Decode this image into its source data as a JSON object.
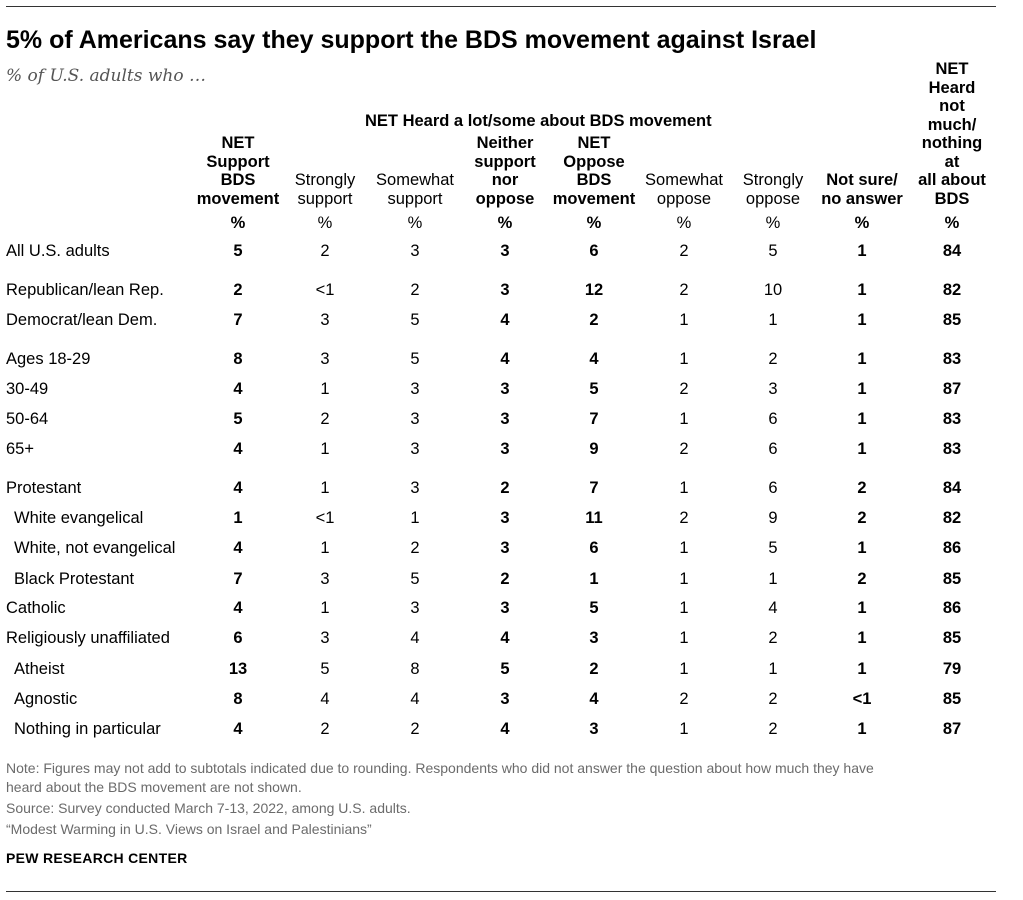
{
  "chart_data": {
    "type": "table",
    "title": "5% of Americans say they support the BDS movement against Israel",
    "subtitle": "% of U.S. adults who …",
    "group_header": "NET Heard a lot/some about BDS movement",
    "columns": [
      {
        "label": "NET\nSupport\nBDS\nmovement",
        "unit": "%"
      },
      {
        "label": "Strongly\nsupport",
        "unit": "%"
      },
      {
        "label": "Somewhat\nsupport",
        "unit": "%"
      },
      {
        "label": "Neither\nsupport\nnor\noppose",
        "unit": "%"
      },
      {
        "label": "NET\nOppose\nBDS\nmovement",
        "unit": "%"
      },
      {
        "label": "Somewhat\noppose",
        "unit": "%"
      },
      {
        "label": "Strongly\noppose",
        "unit": "%"
      },
      {
        "label": "Not sure/\nno answer",
        "unit": "%"
      },
      {
        "label": "NET Heard\nnot much/\nnothing at\nall about\nBDS",
        "unit": "%"
      }
    ],
    "rows": [
      {
        "label": "All U.S. adults",
        "values": [
          "5",
          "2",
          "3",
          "3",
          "6",
          "2",
          "5",
          "1",
          "84"
        ]
      },
      {
        "label": "Republican/lean Rep.",
        "values": [
          "2",
          "<1",
          "2",
          "3",
          "12",
          "2",
          "10",
          "1",
          "82"
        ]
      },
      {
        "label": "Democrat/lean Dem.",
        "values": [
          "7",
          "3",
          "5",
          "4",
          "2",
          "1",
          "1",
          "1",
          "85"
        ]
      },
      {
        "label": "Ages 18-29",
        "values": [
          "8",
          "3",
          "5",
          "4",
          "4",
          "1",
          "2",
          "1",
          "83"
        ]
      },
      {
        "label": "30-49",
        "values": [
          "4",
          "1",
          "3",
          "3",
          "5",
          "2",
          "3",
          "1",
          "87"
        ]
      },
      {
        "label": "50-64",
        "values": [
          "5",
          "2",
          "3",
          "3",
          "7",
          "1",
          "6",
          "1",
          "83"
        ]
      },
      {
        "label": "65+",
        "values": [
          "4",
          "1",
          "3",
          "3",
          "9",
          "2",
          "6",
          "1",
          "83"
        ]
      },
      {
        "label": "Protestant",
        "values": [
          "4",
          "1",
          "3",
          "2",
          "7",
          "1",
          "6",
          "2",
          "84"
        ]
      },
      {
        "label": "White evangelical",
        "values": [
          "1",
          "<1",
          "1",
          "3",
          "11",
          "2",
          "9",
          "2",
          "82"
        ]
      },
      {
        "label": "White, not evangelical",
        "values": [
          "4",
          "1",
          "2",
          "3",
          "6",
          "1",
          "5",
          "1",
          "86"
        ]
      },
      {
        "label": "Black Protestant",
        "values": [
          "7",
          "3",
          "5",
          "2",
          "1",
          "1",
          "1",
          "2",
          "85"
        ]
      },
      {
        "label": "Catholic",
        "values": [
          "4",
          "1",
          "3",
          "3",
          "5",
          "1",
          "4",
          "1",
          "86"
        ]
      },
      {
        "label": "Religiously unaffiliated",
        "values": [
          "6",
          "3",
          "4",
          "4",
          "3",
          "1",
          "2",
          "1",
          "85"
        ]
      },
      {
        "label": "Atheist",
        "values": [
          "13",
          "5",
          "8",
          "5",
          "2",
          "1",
          "1",
          "1",
          "79"
        ]
      },
      {
        "label": "Agnostic",
        "values": [
          "8",
          "4",
          "4",
          "3",
          "4",
          "2",
          "2",
          "<1",
          "85"
        ]
      },
      {
        "label": "Nothing in particular",
        "values": [
          "4",
          "2",
          "2",
          "4",
          "3",
          "1",
          "2",
          "1",
          "87"
        ]
      }
    ]
  },
  "notes": {
    "note_line1": "Note: Figures may not add to subtotals indicated due to rounding. Respondents who did not answer the question about how much they have",
    "note_line2": "heard about the BDS movement are not shown.",
    "source": "Source: Survey conducted March 7-13, 2022, among U.S. adults.",
    "report": "“Modest Warming in U.S. Views on Israel and Palestinians”"
  },
  "brand": "PEW RESEARCH CENTER"
}
